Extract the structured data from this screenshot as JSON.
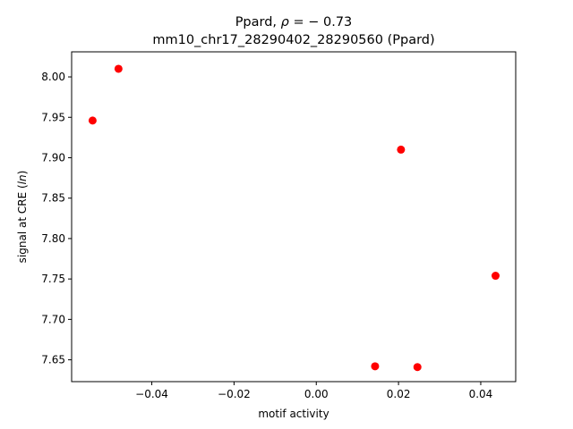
{
  "chart_data": {
    "type": "scatter",
    "title_line1_prefix": "Ppard, ",
    "title_line1_rho": "ρ",
    "title_line1_suffix": " = − 0.73",
    "title_line2": "mm10_chr17_28290402_28290560 (Ppard)",
    "xlabel": "motif activity",
    "ylabel_prefix": "signal at CRE (",
    "ylabel_italic": "ln",
    "ylabel_suffix": ")",
    "xlim": [
      -0.0595,
      0.0485
    ],
    "ylim": [
      7.623,
      8.031
    ],
    "x_ticks": [
      {
        "value": -0.04,
        "label": "−0.04"
      },
      {
        "value": -0.02,
        "label": "−0.02"
      },
      {
        "value": 0.0,
        "label": "0.00"
      },
      {
        "value": 0.02,
        "label": "0.02"
      },
      {
        "value": 0.04,
        "label": "0.04"
      }
    ],
    "y_ticks": [
      {
        "value": 7.65,
        "label": "7.65"
      },
      {
        "value": 7.7,
        "label": "7.70"
      },
      {
        "value": 7.75,
        "label": "7.75"
      },
      {
        "value": 7.8,
        "label": "7.80"
      },
      {
        "value": 7.85,
        "label": "7.85"
      },
      {
        "value": 7.9,
        "label": "7.90"
      },
      {
        "value": 7.95,
        "label": "7.95"
      },
      {
        "value": 8.0,
        "label": "8.00"
      }
    ],
    "points": [
      {
        "x": -0.0544,
        "y": 7.946
      },
      {
        "x": -0.0481,
        "y": 8.01
      },
      {
        "x": 0.0206,
        "y": 7.91
      },
      {
        "x": 0.0143,
        "y": 7.642
      },
      {
        "x": 0.0246,
        "y": 7.641
      },
      {
        "x": 0.0436,
        "y": 7.754
      }
    ],
    "point_color": "#ff0000",
    "grid": false
  }
}
